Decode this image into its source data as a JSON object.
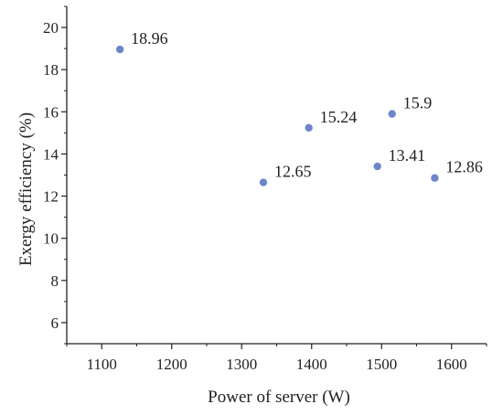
{
  "chart_data": {
    "type": "scatter",
    "title": "",
    "xlabel": "Power of server (W)",
    "ylabel": "Exergy efficiency (%)",
    "xlim": [
      1050,
      1650
    ],
    "ylim": [
      5,
      21
    ],
    "xticks": [
      1100,
      1200,
      1300,
      1400,
      1500,
      1600
    ],
    "yticks": [
      6,
      8,
      10,
      12,
      14,
      16,
      18,
      20
    ],
    "grid": false,
    "marker_color": "#6f85c9",
    "points": [
      {
        "x": 1126,
        "y": 18.96,
        "label": "18.96"
      },
      {
        "x": 1331,
        "y": 12.65,
        "label": "12.65"
      },
      {
        "x": 1396,
        "y": 15.24,
        "label": "15.24"
      },
      {
        "x": 1494,
        "y": 13.41,
        "label": "13.41"
      },
      {
        "x": 1515,
        "y": 15.9,
        "label": "15.9"
      },
      {
        "x": 1576,
        "y": 12.86,
        "label": "12.86"
      }
    ]
  }
}
